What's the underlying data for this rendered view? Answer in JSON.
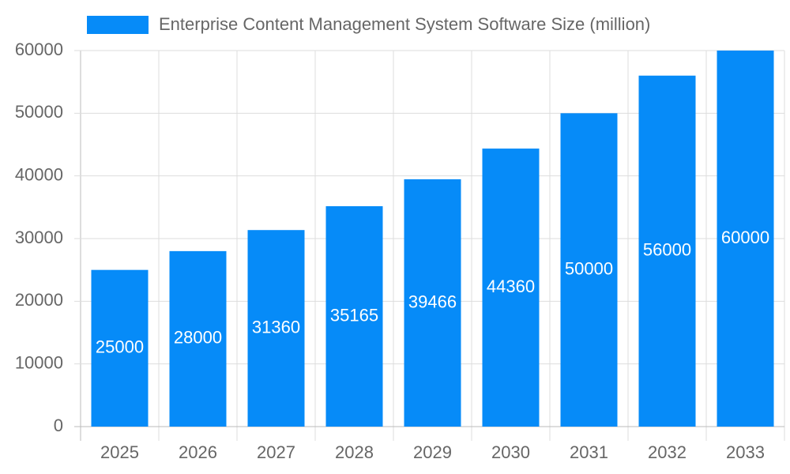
{
  "chart_data": {
    "type": "bar",
    "categories": [
      "2025",
      "2026",
      "2027",
      "2028",
      "2029",
      "2030",
      "2031",
      "2032",
      "2033"
    ],
    "series": [
      {
        "name": "Enterprise Content Management System Software Size (million)",
        "color": "#068bf8",
        "values": [
          25000,
          28000,
          31360,
          35165,
          39466,
          44360,
          50000,
          56000,
          60000
        ]
      }
    ],
    "ylim": [
      0,
      60000
    ],
    "yticks": [
      0,
      10000,
      20000,
      30000,
      40000,
      50000,
      60000
    ],
    "grid": true,
    "legend": "top"
  }
}
